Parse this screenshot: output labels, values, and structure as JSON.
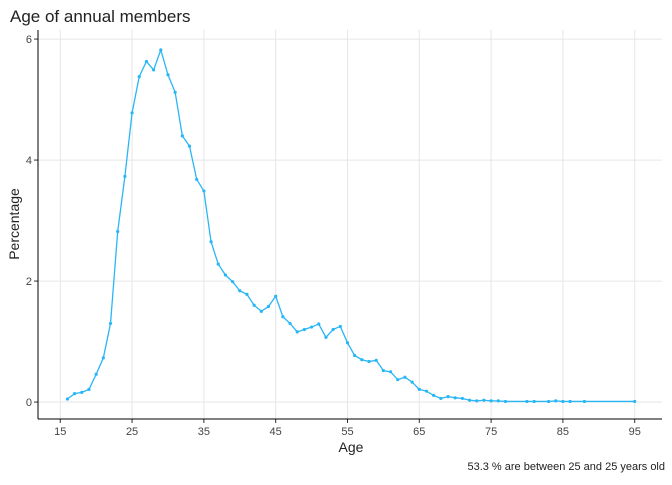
{
  "chart_data": {
    "type": "line",
    "title": "Age of annual members",
    "xlabel": "Age",
    "ylabel": "Percentage",
    "caption": "53.3 % are between 25 and 25 years old",
    "x": [
      16,
      17,
      18,
      19,
      20,
      21,
      22,
      23,
      24,
      25,
      26,
      27,
      28,
      29,
      30,
      31,
      32,
      33,
      34,
      35,
      36,
      37,
      38,
      39,
      40,
      41,
      42,
      43,
      44,
      45,
      46,
      47,
      48,
      49,
      50,
      51,
      52,
      53,
      54,
      55,
      56,
      57,
      58,
      59,
      60,
      61,
      62,
      63,
      64,
      65,
      66,
      67,
      68,
      69,
      70,
      71,
      72,
      73,
      74,
      75,
      76,
      77,
      80,
      81,
      83,
      84,
      85,
      86,
      88,
      95
    ],
    "series": [
      {
        "color": "#29b6f6",
        "values": [
          0.05,
          0.14,
          0.16,
          0.21,
          0.46,
          0.73,
          1.3,
          2.82,
          3.73,
          4.78,
          5.38,
          5.63,
          5.49,
          5.82,
          5.41,
          5.12,
          4.4,
          4.23,
          3.68,
          3.49,
          2.65,
          2.28,
          2.1,
          1.99,
          1.84,
          1.78,
          1.6,
          1.5,
          1.58,
          1.75,
          1.41,
          1.3,
          1.16,
          1.2,
          1.24,
          1.29,
          1.07,
          1.2,
          1.25,
          0.98,
          0.77,
          0.7,
          0.67,
          0.69,
          0.52,
          0.5,
          0.37,
          0.41,
          0.33,
          0.21,
          0.18,
          0.11,
          0.06,
          0.09,
          0.07,
          0.06,
          0.03,
          0.02,
          0.03,
          0.02,
          0.02,
          0.01,
          0.01,
          0.01,
          0.01,
          0.02,
          0.01,
          0.01,
          0.01,
          0.01
        ]
      }
    ],
    "xlim": [
      11.9,
      98.8
    ],
    "ylim": [
      -0.28,
      6.15
    ],
    "xticks": [
      15,
      25,
      35,
      45,
      55,
      65,
      75,
      85,
      95
    ],
    "yticks": [
      0,
      2,
      4,
      6
    ],
    "grid": true
  }
}
